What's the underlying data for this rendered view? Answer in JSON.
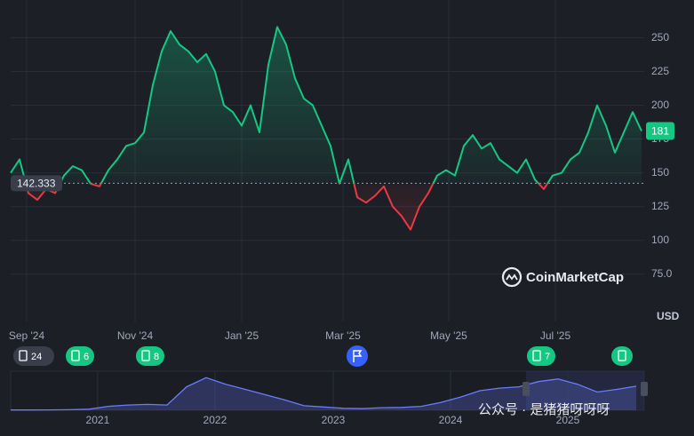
{
  "chart_data": [
    {
      "type": "line",
      "values": [
        150,
        160,
        135,
        130,
        138,
        135,
        148,
        155,
        152,
        142,
        140,
        152,
        160,
        170,
        172,
        180,
        215,
        240,
        255,
        245,
        240,
        232,
        238,
        225,
        200,
        195,
        185,
        200,
        180,
        230,
        258,
        245,
        220,
        205,
        200,
        185,
        170,
        142,
        160,
        132,
        128,
        133,
        140,
        125,
        118,
        108,
        125,
        135,
        148,
        152,
        148,
        170,
        178,
        168,
        172,
        160,
        155,
        150,
        160,
        145,
        138,
        148,
        150,
        160,
        165,
        180,
        200,
        185,
        165,
        180,
        195,
        181
      ],
      "baseline": 142.333,
      "xlim": [
        0,
        71
      ],
      "xticks": [
        {
          "value": 1.8,
          "label": "Sep '24"
        },
        {
          "value": 14,
          "label": "Nov '24"
        },
        {
          "value": 26,
          "label": "Jan '25"
        },
        {
          "value": 37.4,
          "label": "Mar '25"
        },
        {
          "value": 49.3,
          "label": "May '25"
        },
        {
          "value": 61.3,
          "label": "Jul '25"
        }
      ],
      "ylim": [
        40,
        278
      ],
      "yticks": [
        {
          "value": 75,
          "label": "75.0"
        },
        100,
        125,
        150,
        175,
        200,
        225,
        250
      ],
      "y_unit": "USD",
      "colors": {
        "up": "#16c784",
        "down": "#ea3943"
      },
      "brand": "CoinMarketCap",
      "event_counts": [
        24,
        6,
        8,
        7
      ],
      "grid": true
    },
    {
      "type": "navigator",
      "values": [
        2,
        2,
        3,
        4,
        8,
        30,
        40,
        45,
        40,
        180,
        250,
        200,
        160,
        120,
        80,
        35,
        25,
        15,
        12,
        20,
        22,
        30,
        60,
        100,
        150,
        170,
        180,
        220,
        240,
        200,
        140,
        160,
        185
      ],
      "xlim": [
        0,
        32
      ],
      "xticks": [
        {
          "value": 4.45,
          "label": "2021"
        },
        {
          "value": 10.45,
          "label": "2022"
        },
        {
          "value": 16.5,
          "label": "2023"
        },
        {
          "value": 22.5,
          "label": "2024"
        },
        {
          "value": 28.5,
          "label": "2025"
        }
      ],
      "ylim": [
        0,
        300
      ],
      "color": "#6b7bff",
      "watermark": "公众号 · 是猪猪呀呀呀"
    }
  ]
}
